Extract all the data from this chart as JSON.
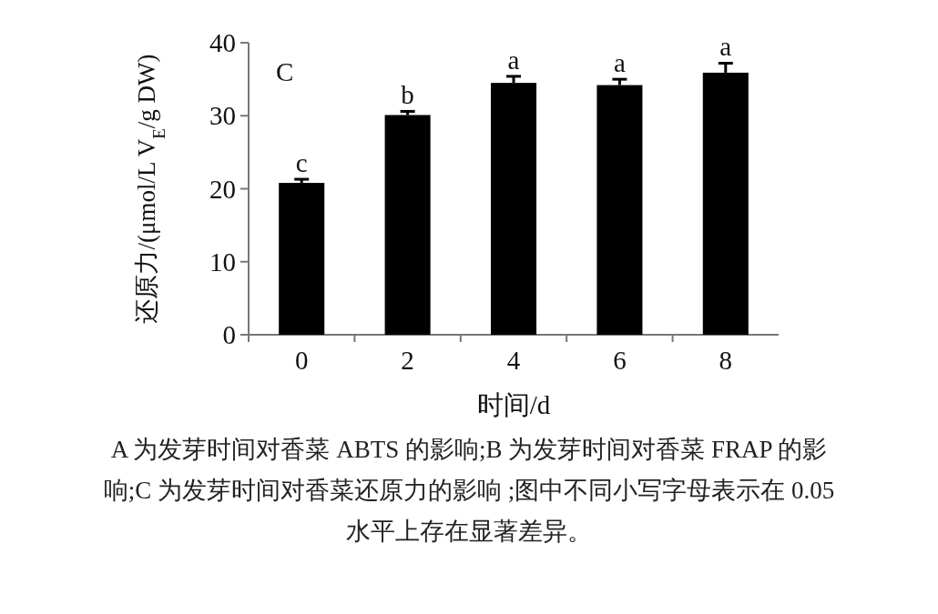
{
  "chart_data": {
    "type": "bar",
    "categories": [
      "0",
      "2",
      "4",
      "6",
      "8"
    ],
    "values": [
      20.8,
      30.1,
      34.5,
      34.2,
      35.9
    ],
    "errors": [
      0.5,
      0.5,
      0.9,
      0.8,
      1.3
    ],
    "color": "#000000",
    "ylim": [
      0,
      40
    ],
    "yticks": [
      0,
      10,
      20,
      30,
      40
    ],
    "xlabel": "时间/d",
    "ylabel": "还原力/(μmol/L V$_{E}$/g DW)",
    "annotations": [
      "C",
      {
        "text": "c",
        "x": "0",
        "y": 21.3
      },
      {
        "text": "b",
        "x": "2",
        "y": 30.6
      },
      {
        "text": "a",
        "x": "4",
        "y": 35.4
      },
      {
        "text": "a",
        "x": "6",
        "y": 35.0
      },
      {
        "text": "a",
        "x": "8",
        "y": 37.2
      },
      "A 为发芽时间对香菜 ABTS 的影响;B 为发芽时间对香菜 FRAP 的影响;C 为发芽时间对香菜还原力的影响 ;图中不同小写字母表示在 0.05 水平上存在显著差异。"
    ]
  }
}
